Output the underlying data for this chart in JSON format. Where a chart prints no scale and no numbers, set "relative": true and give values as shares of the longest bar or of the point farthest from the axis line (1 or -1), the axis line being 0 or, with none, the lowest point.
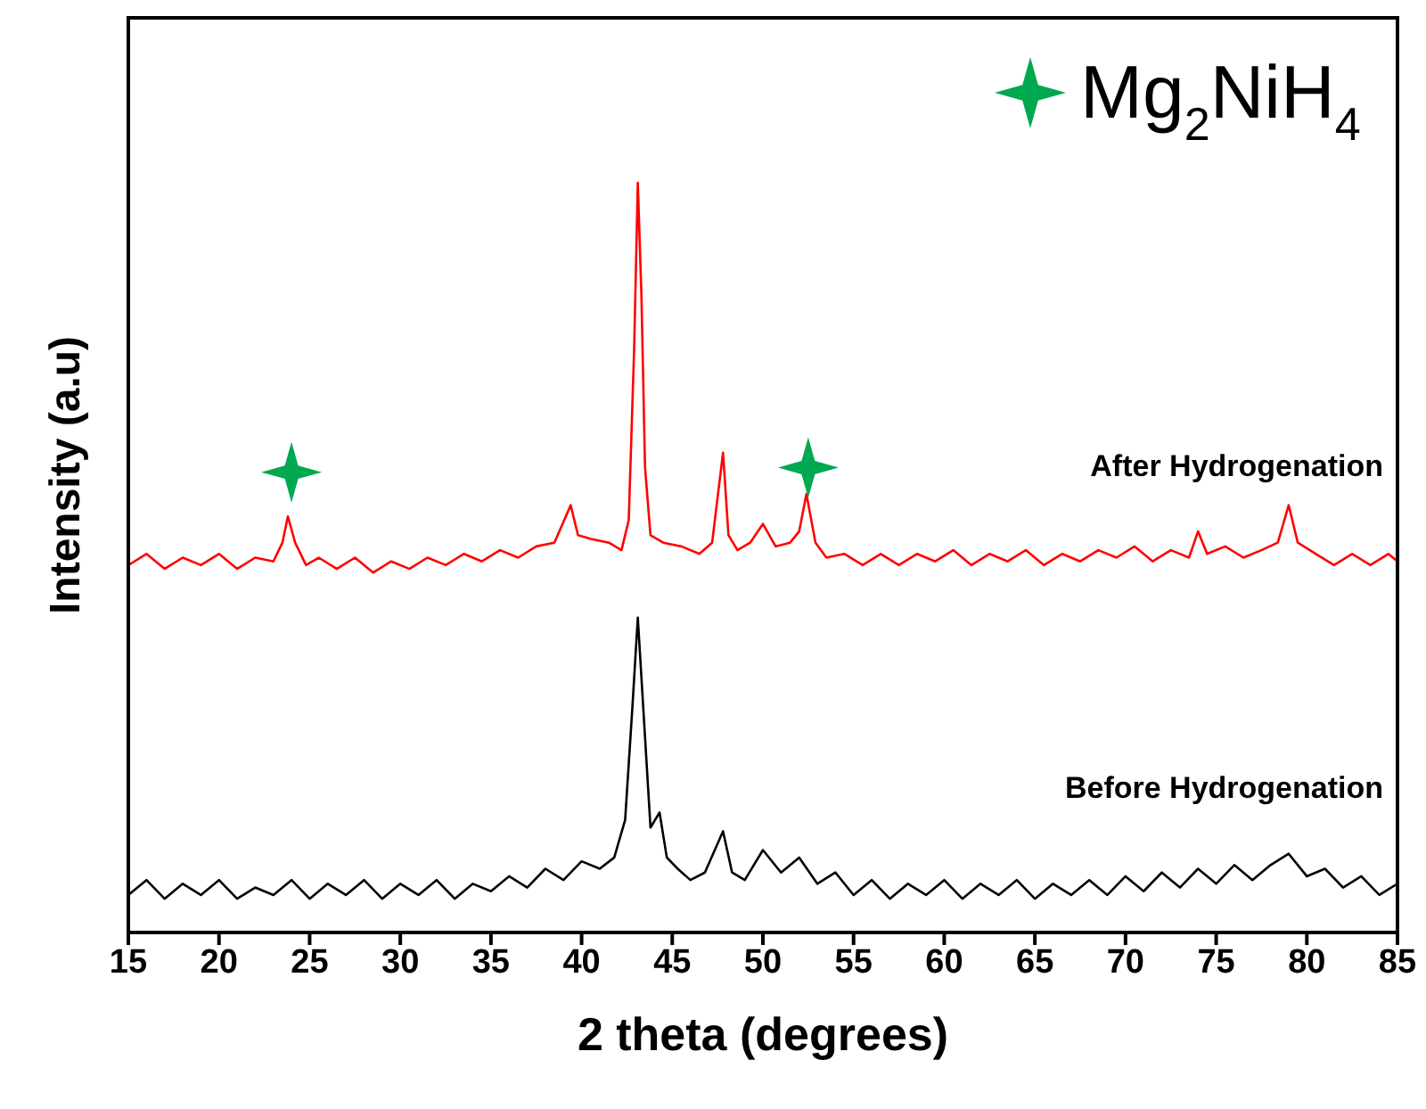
{
  "chart_data": {
    "type": "line",
    "relative": true,
    "xlabel": "2 theta (degrees)",
    "ylabel": "Intensity (a.u)",
    "xlim": [
      15,
      85
    ],
    "xticks": [
      15,
      20,
      25,
      30,
      35,
      40,
      45,
      50,
      55,
      60,
      65,
      70,
      75,
      80,
      85
    ],
    "legend": "top right",
    "series": [
      {
        "name": "After Hydrogenation",
        "color": "#ff0000",
        "x": [
          15,
          16,
          17,
          18,
          19,
          20,
          21,
          22,
          23,
          23.5,
          23.8,
          24.2,
          24.8,
          25.5,
          26.5,
          27.5,
          28.5,
          29.5,
          30.5,
          31.5,
          32.5,
          33.5,
          34.5,
          35.5,
          36.5,
          37.5,
          38.5,
          39.4,
          39.8,
          40.5,
          41.5,
          42.2,
          42.6,
          42.9,
          43.1,
          43.3,
          43.5,
          43.8,
          44.5,
          45.5,
          46.5,
          47.2,
          47.8,
          48.1,
          48.6,
          49.3,
          50,
          50.7,
          51.5,
          52,
          52.4,
          52.9,
          53.5,
          54.5,
          55.5,
          56.5,
          57.5,
          58.5,
          59.5,
          60.5,
          61.5,
          62.5,
          63.5,
          64.5,
          65.5,
          66.5,
          67.5,
          68.5,
          69.5,
          70.5,
          71.5,
          72.5,
          73.5,
          74,
          74.5,
          75.5,
          76.5,
          77.5,
          78.4,
          79,
          79.5,
          80.5,
          81.5,
          82.5,
          83.5,
          84.5,
          85
        ],
        "values": [
          0.49,
          0.505,
          0.485,
          0.5,
          0.49,
          0.505,
          0.485,
          0.5,
          0.495,
          0.52,
          0.555,
          0.52,
          0.49,
          0.5,
          0.485,
          0.5,
          0.48,
          0.495,
          0.485,
          0.5,
          0.49,
          0.505,
          0.495,
          0.51,
          0.5,
          0.515,
          0.52,
          0.57,
          0.53,
          0.525,
          0.52,
          0.51,
          0.55,
          0.78,
          1.0,
          0.85,
          0.62,
          0.53,
          0.52,
          0.515,
          0.505,
          0.52,
          0.64,
          0.53,
          0.51,
          0.52,
          0.545,
          0.515,
          0.52,
          0.535,
          0.585,
          0.52,
          0.5,
          0.505,
          0.49,
          0.505,
          0.49,
          0.505,
          0.495,
          0.51,
          0.49,
          0.505,
          0.495,
          0.51,
          0.49,
          0.505,
          0.495,
          0.51,
          0.5,
          0.515,
          0.495,
          0.51,
          0.5,
          0.535,
          0.505,
          0.515,
          0.5,
          0.51,
          0.52,
          0.57,
          0.52,
          0.505,
          0.49,
          0.505,
          0.49,
          0.505,
          0.495
        ]
      },
      {
        "name": "Before Hydrogenation",
        "color": "#000000",
        "x": [
          15,
          16,
          17,
          18,
          19,
          20,
          21,
          22,
          23,
          24,
          25,
          26,
          27,
          28,
          29,
          30,
          31,
          32,
          33,
          34,
          35,
          36,
          37,
          38,
          39,
          40,
          41,
          41.8,
          42.4,
          42.8,
          43.1,
          43.4,
          43.8,
          44.3,
          44.7,
          45.3,
          46,
          46.8,
          47.8,
          48.3,
          49,
          50,
          51,
          52,
          53,
          54,
          55,
          56,
          57,
          58,
          59,
          60,
          61,
          62,
          63,
          64,
          65,
          66,
          67,
          68,
          69,
          70,
          71,
          72,
          73,
          74,
          75,
          76,
          77,
          78,
          79,
          80,
          81,
          82,
          83,
          84,
          85
        ],
        "values": [
          0.05,
          0.07,
          0.045,
          0.065,
          0.05,
          0.07,
          0.045,
          0.06,
          0.05,
          0.07,
          0.045,
          0.065,
          0.05,
          0.07,
          0.045,
          0.065,
          0.05,
          0.07,
          0.045,
          0.065,
          0.055,
          0.075,
          0.06,
          0.085,
          0.07,
          0.095,
          0.085,
          0.1,
          0.15,
          0.3,
          0.42,
          0.3,
          0.14,
          0.16,
          0.1,
          0.085,
          0.07,
          0.08,
          0.135,
          0.08,
          0.07,
          0.11,
          0.08,
          0.1,
          0.065,
          0.08,
          0.05,
          0.07,
          0.045,
          0.065,
          0.05,
          0.07,
          0.045,
          0.065,
          0.05,
          0.07,
          0.045,
          0.065,
          0.05,
          0.07,
          0.05,
          0.075,
          0.055,
          0.08,
          0.06,
          0.085,
          0.065,
          0.09,
          0.07,
          0.09,
          0.105,
          0.075,
          0.085,
          0.06,
          0.075,
          0.05,
          0.065
        ]
      },
      {
        "name": "Mg$_{2}$NiH$_{4}$",
        "type": "scatter",
        "marker": "star",
        "color": "#00a84f",
        "x": [
          24,
          52.5
        ],
        "values": [
          0.614,
          0.62
        ]
      }
    ]
  }
}
